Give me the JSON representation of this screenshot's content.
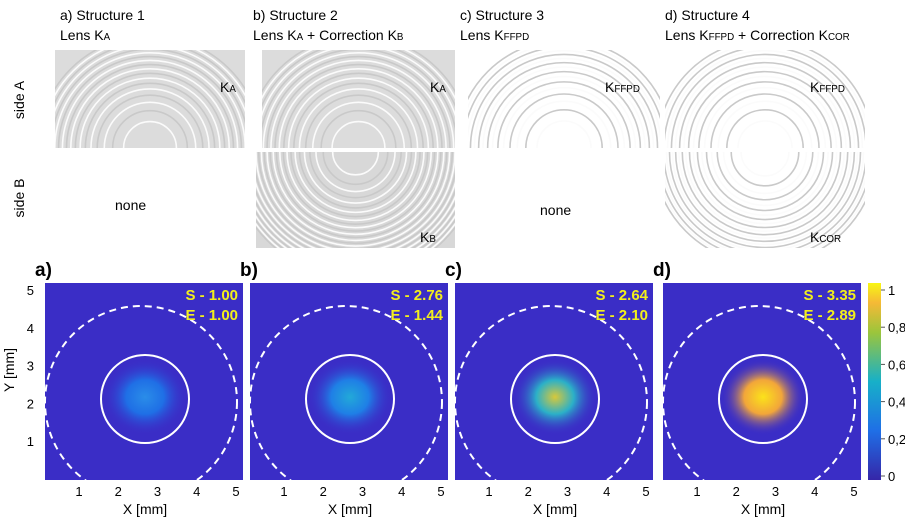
{
  "side_labels": [
    "side A",
    "side B"
  ],
  "columns": [
    {
      "title": "a) Structure 1",
      "lens": [
        "Lens K",
        "A"
      ],
      "side_a_label": [
        "K",
        "A"
      ],
      "side_b_label": [
        "none"
      ]
    },
    {
      "title": "b) Structure 2",
      "lens": [
        "Lens K",
        "A",
        " + Correction K",
        "B"
      ],
      "side_a_label": [
        "K",
        "A"
      ],
      "side_b_label": [
        "K",
        "B"
      ]
    },
    {
      "title": "c) Structure 3",
      "lens": [
        "Lens K",
        "FFPD"
      ],
      "side_a_label": [
        "K",
        "FFPD"
      ],
      "side_b_label": [
        "none"
      ]
    },
    {
      "title": "d) Structure 4",
      "lens": [
        "Lens K",
        "FFPD",
        " + Correction K",
        "COR"
      ],
      "side_a_label": [
        "K",
        "FFPD"
      ],
      "side_b_label": [
        "K",
        "COR"
      ]
    }
  ],
  "maps": [
    {
      "label": "a)",
      "s": "S - 1.00",
      "e": "E - 1.00"
    },
    {
      "label": "b)",
      "s": "S - 2.76",
      "e": "E - 1.44"
    },
    {
      "label": "c)",
      "s": "S - 2.64",
      "e": "E - 2.10"
    },
    {
      "label": "d)",
      "s": "S - 3.35",
      "e": "E - 2.89"
    }
  ],
  "x_ticks": [
    "1",
    "2",
    "3",
    "4",
    "5"
  ],
  "x_label": "X [mm]",
  "y_ticks": [
    "1",
    "2",
    "3",
    "4",
    "5"
  ],
  "y_label": "Y [mm]",
  "colorbar_ticks": [
    "0",
    "0,2",
    "0,4",
    "0,6",
    "0,8",
    "1"
  ]
}
